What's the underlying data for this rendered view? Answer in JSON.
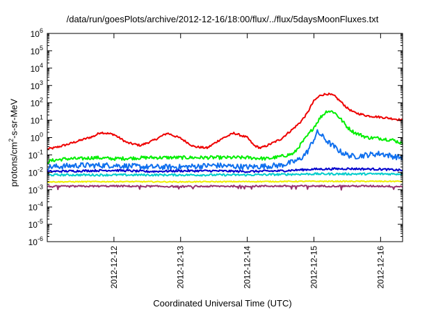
{
  "chart_data": {
    "type": "line",
    "title": "/data/run/goesPlots/archive/2012-12-16/18:00/flux/../flux/5daysMoonFluxes.txt",
    "xlabel": "Coordinated Universal Time (UTC)",
    "ylabel_parts": [
      "protons/cm",
      "2",
      "-s-sr-MeV"
    ],
    "xlim": [
      0,
      5.33
    ],
    "x_ticks": [
      {
        "x": 1,
        "label": "2012-12-12"
      },
      {
        "x": 2,
        "label": "2012-12-13"
      },
      {
        "x": 3,
        "label": "2012-12-14"
      },
      {
        "x": 4,
        "label": "2012-12-15"
      },
      {
        "x": 5,
        "label": "2012-12-16"
      }
    ],
    "y_scale": "log",
    "ylim": [
      1e-06,
      1000000.0
    ],
    "y_ticks": [
      {
        "exp": -6,
        "label": "10",
        "sup": "-6"
      },
      {
        "exp": -5,
        "label": "10",
        "sup": "-5"
      },
      {
        "exp": -4,
        "label": "10",
        "sup": "-4"
      },
      {
        "exp": -3,
        "label": "10",
        "sup": "-3"
      },
      {
        "exp": -2,
        "label": "10",
        "sup": "-2"
      },
      {
        "exp": -1,
        "label": "10",
        "sup": "-1"
      },
      {
        "exp": 0,
        "label": "10",
        "sup": "0"
      },
      {
        "exp": 1,
        "label": "10",
        "sup": "1"
      },
      {
        "exp": 2,
        "label": "10",
        "sup": "2"
      },
      {
        "exp": 3,
        "label": "10",
        "sup": "3"
      },
      {
        "exp": 4,
        "label": "10",
        "sup": "4"
      },
      {
        "exp": 5,
        "label": "10",
        "sup": "5"
      },
      {
        "exp": 6,
        "label": "10",
        "sup": "6"
      }
    ],
    "grid": false,
    "legend": "none",
    "series": [
      {
        "color": "#ee0000",
        "noise": 0.06,
        "x": [
          0,
          0.1,
          0.3,
          0.5,
          0.7,
          0.8,
          1.0,
          1.2,
          1.4,
          1.6,
          1.8,
          2.0,
          2.2,
          2.4,
          2.6,
          2.8,
          3.0,
          3.1,
          3.2,
          3.3,
          3.5,
          3.7,
          3.8,
          3.9,
          3.95,
          4.0,
          4.1,
          4.2,
          4.3,
          4.4,
          4.5,
          4.6,
          4.8,
          5.0,
          5.2,
          5.33
        ],
        "y": [
          0.22,
          0.25,
          0.4,
          0.7,
          1.2,
          2.0,
          1.5,
          0.5,
          0.35,
          0.7,
          1.8,
          0.9,
          0.3,
          0.25,
          0.8,
          1.8,
          1.0,
          0.35,
          0.25,
          0.35,
          0.8,
          3.5,
          8.0,
          25,
          60,
          130,
          280,
          330,
          260,
          120,
          50,
          28,
          18,
          15,
          12,
          10
        ]
      },
      {
        "color": "#00ee00",
        "noise": 0.1,
        "x": [
          0,
          0.1,
          0.3,
          0.5,
          0.7,
          1.0,
          1.5,
          2.0,
          2.5,
          3.0,
          3.3,
          3.5,
          3.7,
          3.8,
          3.9,
          4.0,
          4.1,
          4.2,
          4.3,
          4.4,
          4.5,
          4.6,
          4.8,
          5.0,
          5.2,
          5.33
        ],
        "y": [
          0.04,
          0.05,
          0.06,
          0.06,
          0.07,
          0.06,
          0.07,
          0.07,
          0.07,
          0.07,
          0.06,
          0.08,
          0.12,
          0.4,
          1.2,
          4.0,
          15,
          35,
          30,
          12,
          4,
          2,
          1.0,
          0.9,
          0.7,
          0.45
        ]
      },
      {
        "color": "#1070ee",
        "noise": 0.16,
        "x": [
          0,
          0.5,
          1.0,
          1.5,
          2.0,
          2.5,
          3.0,
          3.5,
          3.7,
          3.8,
          3.9,
          4.0,
          4.05,
          4.1,
          4.2,
          4.3,
          4.4,
          4.5,
          4.6,
          4.8,
          5.0,
          5.2,
          5.33
        ],
        "y": [
          0.02,
          0.025,
          0.025,
          0.02,
          0.02,
          0.025,
          0.02,
          0.025,
          0.04,
          0.06,
          0.15,
          0.8,
          2.0,
          1.5,
          0.6,
          0.3,
          0.15,
          0.1,
          0.08,
          0.1,
          0.12,
          0.08,
          0.07
        ]
      },
      {
        "color": "#0000cc",
        "noise": 0.06,
        "x": [
          0,
          0.5,
          1.0,
          1.5,
          2.0,
          2.5,
          3.0,
          3.5,
          4.0,
          4.5,
          5.0,
          5.33
        ],
        "y": [
          0.011,
          0.012,
          0.013,
          0.011,
          0.012,
          0.012,
          0.011,
          0.012,
          0.015,
          0.016,
          0.015,
          0.013
        ]
      },
      {
        "color": "#00cccc",
        "noise": 0.06,
        "x": [
          0,
          1.0,
          2.0,
          3.0,
          4.0,
          5.0,
          5.33
        ],
        "y": [
          0.007,
          0.007,
          0.007,
          0.007,
          0.008,
          0.008,
          0.008
        ]
      },
      {
        "color": "#eeee00",
        "noise": 0.03,
        "x": [
          0,
          1.0,
          2.0,
          3.0,
          4.0,
          5.0,
          5.33
        ],
        "y": [
          0.0028,
          0.0029,
          0.0028,
          0.0029,
          0.003,
          0.003,
          0.003
        ]
      },
      {
        "color": "#993370",
        "noise": 0.05,
        "x": [
          0,
          1.0,
          2.0,
          3.0,
          4.0,
          5.0,
          5.33
        ],
        "y": [
          0.0015,
          0.0016,
          0.0015,
          0.0016,
          0.0016,
          0.0016,
          0.0015
        ]
      }
    ]
  }
}
